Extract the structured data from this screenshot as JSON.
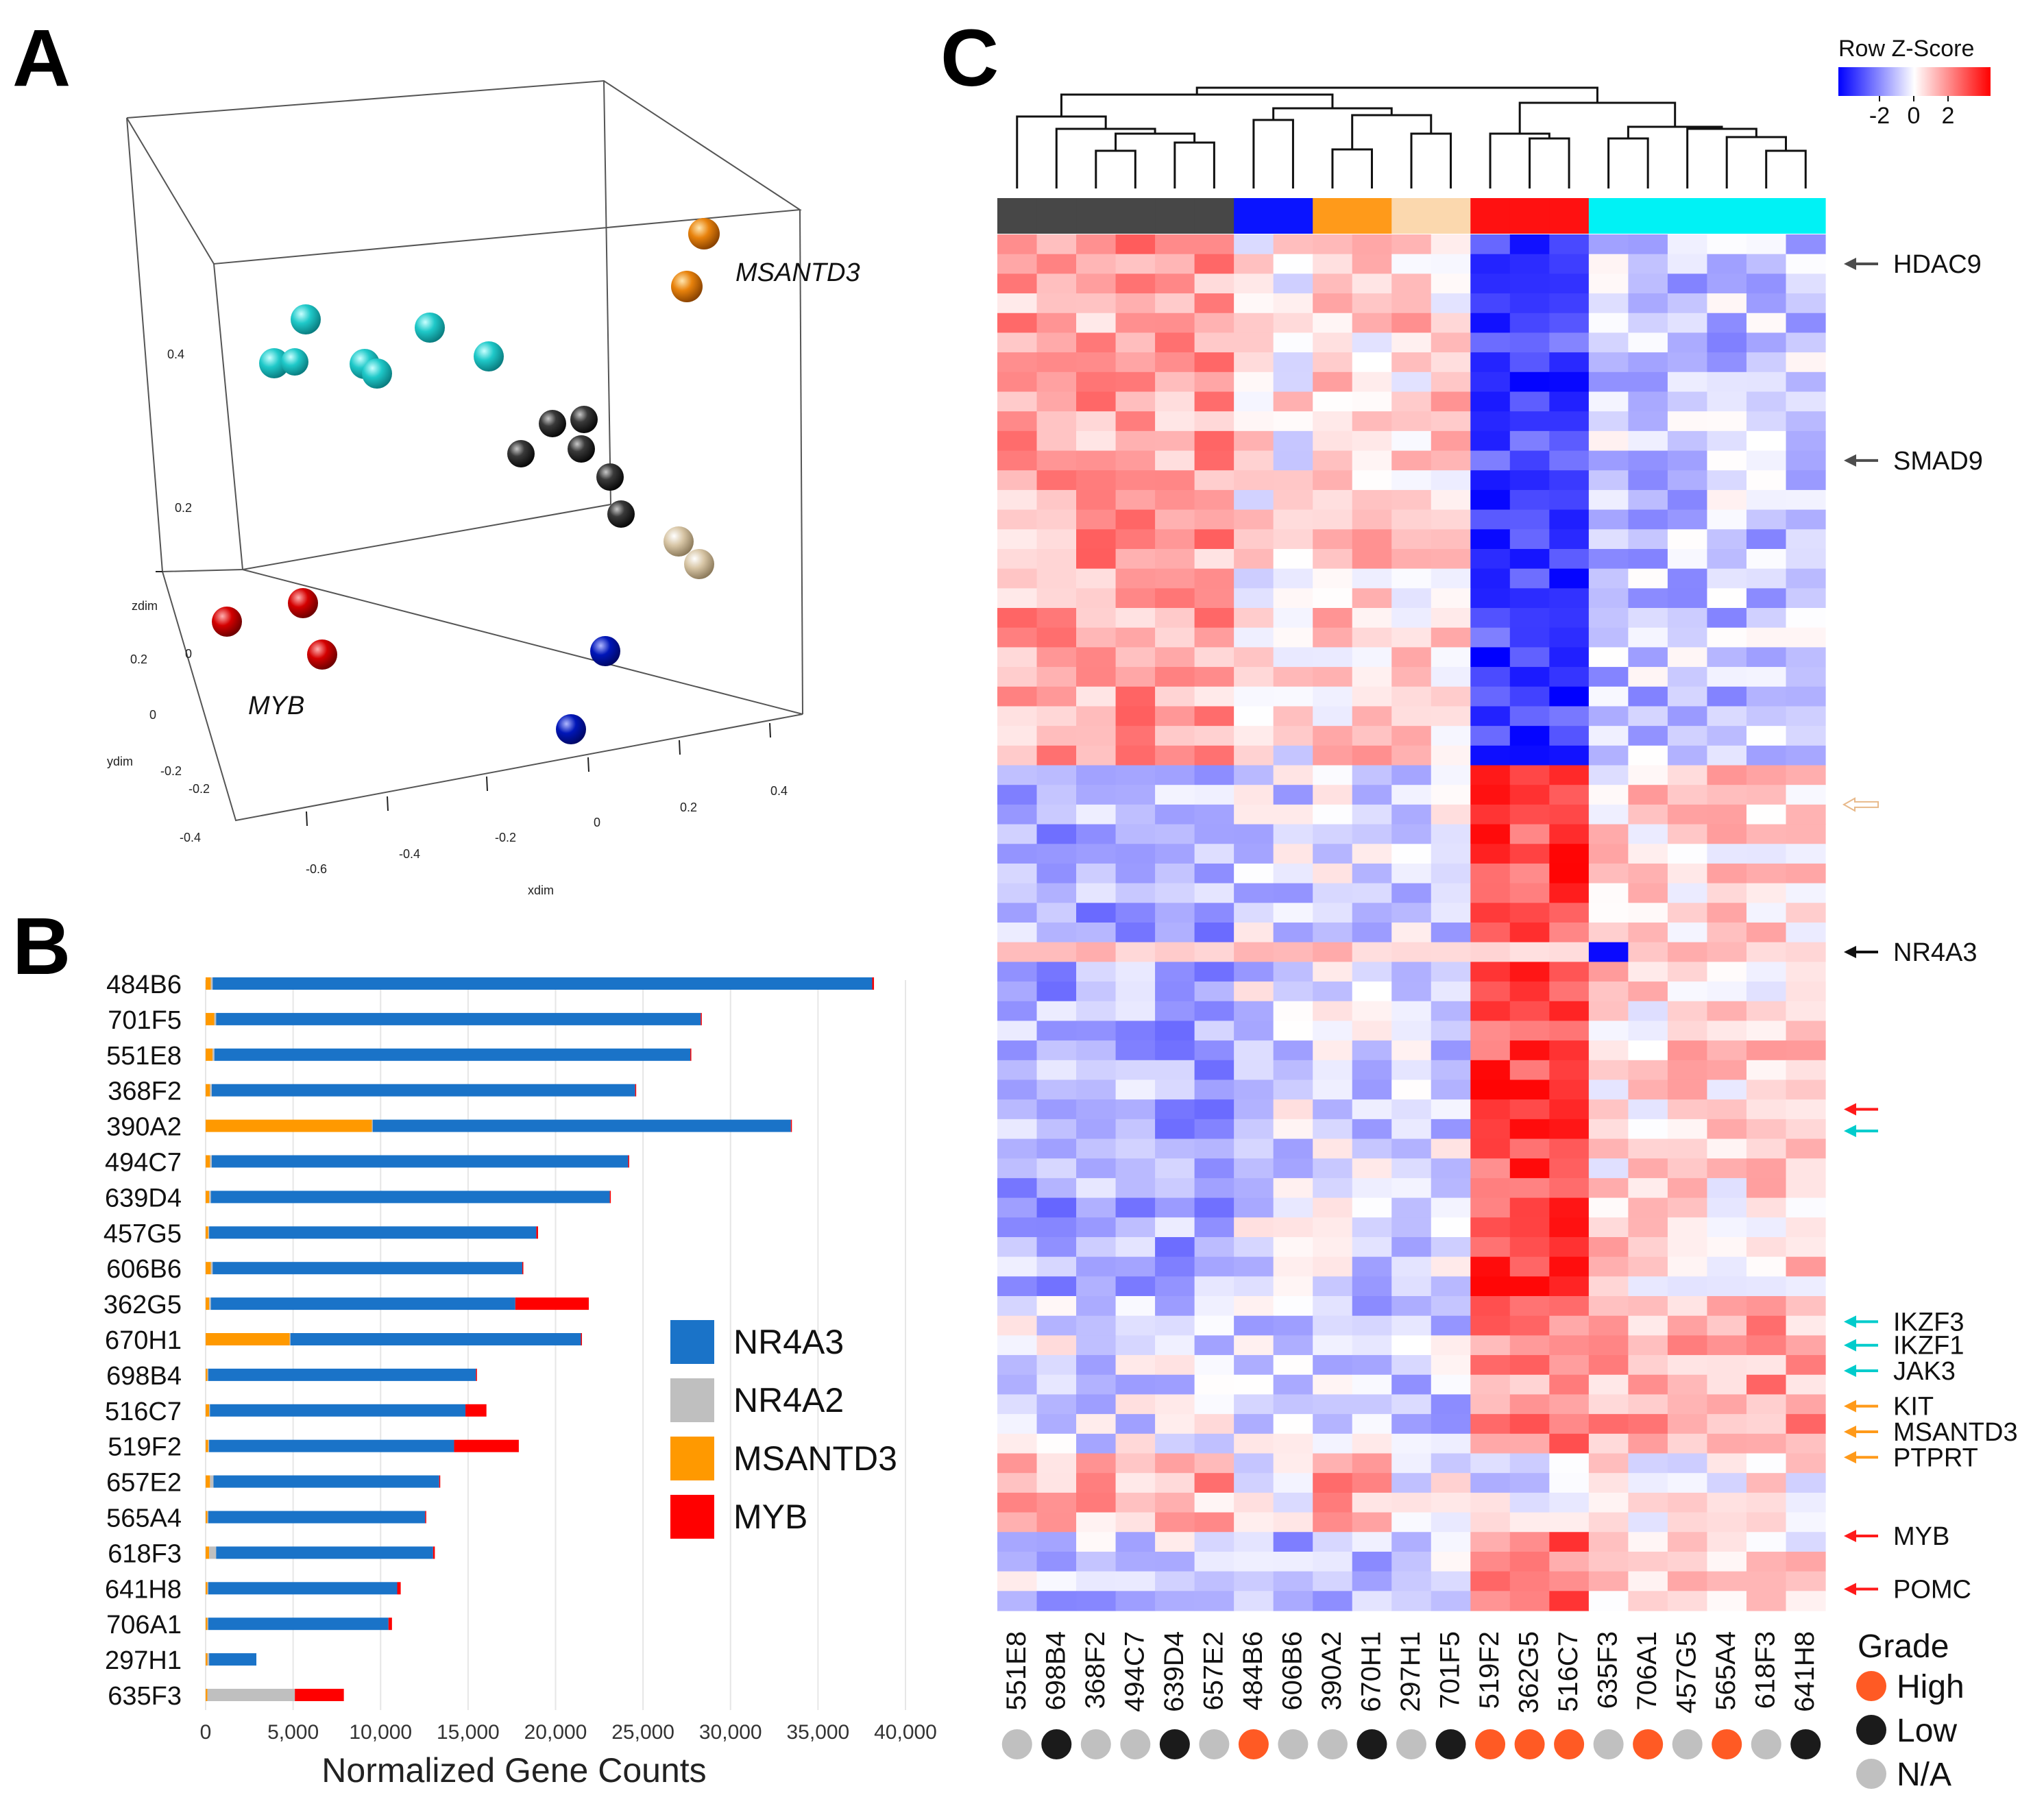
{
  "panels": {
    "a": "A",
    "b": "B",
    "c": "C"
  },
  "chart_data": [
    {
      "type": "scatter",
      "panel": "A",
      "dimensions": 3,
      "xlabel": "xdim",
      "ylabel": "ydim",
      "zlabel": "zdim",
      "x_ticks": [
        "-0.6",
        "-0.4",
        "-0.2",
        "0",
        "0.2",
        "0.4"
      ],
      "y_ticks": [
        "-0.4",
        "-0.2",
        "0",
        "0.2"
      ],
      "z_ticks": [
        "0",
        "0.2",
        "0.4"
      ],
      "yz_extra_ticks": [
        "-0.2",
        "0",
        "0.2"
      ],
      "annotations": [
        "MSANTD3",
        "MYB"
      ],
      "groups": [
        {
          "name": "cyan",
          "color": "#1fc9c9",
          "count": 7
        },
        {
          "name": "black",
          "color": "#333333",
          "count": 6
        },
        {
          "name": "orange",
          "color": "#e8820c",
          "count": 2
        },
        {
          "name": "beige",
          "color": "#d8c6a6",
          "count": 2
        },
        {
          "name": "red",
          "color": "#d40000",
          "count": 3
        },
        {
          "name": "blue",
          "color": "#0016b8",
          "count": 2
        }
      ]
    },
    {
      "type": "bar",
      "panel": "B",
      "orientation": "horizontal",
      "stacked": true,
      "xlabel": "Normalized Gene Counts",
      "xlim": [
        0,
        40000
      ],
      "x_ticks": [
        "0",
        "5,000",
        "10,000",
        "15,000",
        "20,000",
        "25,000",
        "30,000",
        "35,000",
        "40,000"
      ],
      "categories": [
        "484B6",
        "701F5",
        "551E8",
        "368F2",
        "390A2",
        "494C7",
        "639D4",
        "457G5",
        "606B6",
        "362G5",
        "670H1",
        "698B4",
        "516C7",
        "519F2",
        "657E2",
        "565A4",
        "618F3",
        "641H8",
        "706A1",
        "297H1",
        "635F3"
      ],
      "series": [
        {
          "name": "MSANTD3",
          "color": "#ff9900",
          "values": [
            300,
            500,
            400,
            250,
            9500,
            250,
            200,
            150,
            300,
            200,
            4800,
            100,
            200,
            150,
            250,
            100,
            200,
            100,
            100,
            100,
            100
          ]
        },
        {
          "name": "NR4A2",
          "color": "#bfbfbf",
          "values": [
            100,
            100,
            100,
            100,
            50,
            100,
            100,
            50,
            100,
            100,
            50,
            50,
            50,
            50,
            200,
            50,
            400,
            50,
            50,
            100,
            5000
          ]
        },
        {
          "name": "NR4A3",
          "color": "#1a73c8",
          "values": [
            37700,
            27700,
            27200,
            24200,
            23900,
            23800,
            22800,
            18700,
            17700,
            17400,
            16600,
            15300,
            14600,
            14000,
            12900,
            12400,
            12400,
            10800,
            10300,
            2700,
            0
          ]
        },
        {
          "name": "MYB",
          "color": "#ff0000",
          "values": [
            100,
            50,
            50,
            50,
            50,
            50,
            50,
            100,
            50,
            4200,
            50,
            50,
            1200,
            3700,
            50,
            50,
            100,
            200,
            200,
            0,
            2800
          ]
        }
      ],
      "legend": [
        "NR4A3",
        "NR4A2",
        "MSANTD3",
        "MYB"
      ],
      "legend_position": "right"
    },
    {
      "type": "heatmap",
      "panel": "C",
      "title": "Row Z-Score",
      "colorbar_ticks": [
        "-2",
        "0",
        "2"
      ],
      "columns": [
        "551E8",
        "698B4",
        "368F2",
        "494C7",
        "639D4",
        "657E2",
        "484B6",
        "606B6",
        "390A2",
        "670H1",
        "297H1",
        "701F5",
        "519F2",
        "362G5",
        "516C7",
        "635F3",
        "706A1",
        "457G5",
        "565A4",
        "618F3",
        "641H8"
      ],
      "column_groups": [
        "dark",
        "dark",
        "dark",
        "dark",
        "dark",
        "dark",
        "blue",
        "blue",
        "orange",
        "orange",
        "beige",
        "beige",
        "red",
        "red",
        "red",
        "cyan",
        "cyan",
        "cyan",
        "cyan",
        "cyan",
        "cyan"
      ],
      "group_colors": {
        "dark": "#474747",
        "blue": "#0a14ff",
        "orange": "#ff9a1a",
        "beige": "#fbd8ae",
        "red": "#ff1111",
        "cyan": "#00f2f5"
      },
      "grade": [
        "N/A",
        "Low",
        "N/A",
        "N/A",
        "Low",
        "N/A",
        "High",
        "N/A",
        "N/A",
        "Low",
        "N/A",
        "Low",
        "High",
        "High",
        "High",
        "N/A",
        "High",
        "N/A",
        "High",
        "N/A",
        "Low"
      ],
      "grade_legend": {
        "title": "Grade",
        "items": [
          {
            "label": "High",
            "color": "#ff5a24"
          },
          {
            "label": "Low",
            "color": "#1b1b1b"
          },
          {
            "label": "N/A",
            "color": "#c0c0c0"
          }
        ]
      },
      "gene_labels": [
        {
          "text": "HDAC9",
          "arrow": "#4d4d4d",
          "row": 1.5
        },
        {
          "text": "SMAD9",
          "arrow": "#4d4d4d",
          "row": 11.5
        },
        {
          "text": "",
          "arrow": "#e8b98a",
          "row": 29
        },
        {
          "text": "NR4A3",
          "arrow": "#111111",
          "row": 36.5
        },
        {
          "text": "",
          "arrow": "#ff1a1a",
          "row": 44.5
        },
        {
          "text": "",
          "arrow": "#00cccc",
          "row": 45.6
        },
        {
          "text": "IKZF3",
          "arrow": "#00cccc",
          "row": 55.3
        },
        {
          "text": "IKZF1",
          "arrow": "#00cccc",
          "row": 56.5
        },
        {
          "text": "JAK3",
          "arrow": "#00cccc",
          "row": 57.8
        },
        {
          "text": "KIT",
          "arrow": "#ff9a1a",
          "row": 59.6
        },
        {
          "text": "MSANTD3",
          "arrow": "#ff9a1a",
          "row": 60.9
        },
        {
          "text": "PTPRT",
          "arrow": "#ff9a1a",
          "row": 62.2
        },
        {
          "text": "MYB",
          "arrow": "#ff1a1a",
          "row": 66.2
        },
        {
          "text": "POMC",
          "arrow": "#ff1a1a",
          "row": 68.9
        }
      ]
    }
  ]
}
